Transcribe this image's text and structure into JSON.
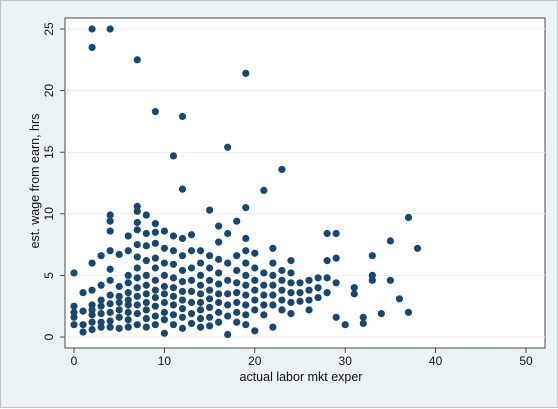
{
  "chart_data": {
    "type": "scatter",
    "title": "",
    "xlabel": "actual labor mkt exper",
    "ylabel": "est. wage from earn, hrs",
    "xlim": [
      0,
      50
    ],
    "ylim": [
      0,
      25
    ],
    "xticks": [
      0,
      10,
      20,
      30,
      40,
      50
    ],
    "yticks": [
      0,
      5,
      10,
      15,
      20,
      25
    ],
    "grid": "horizontal",
    "legend": "none",
    "marker_color": "#1a476f",
    "series": [
      {
        "points": [
          [
            0,
            5.2
          ],
          [
            0,
            2.5
          ],
          [
            0,
            2.0
          ],
          [
            0,
            1.6
          ],
          [
            0,
            1.0
          ],
          [
            1,
            3.6
          ],
          [
            1,
            2.1
          ],
          [
            1,
            1.0
          ],
          [
            1,
            0.4
          ],
          [
            2,
            25.0
          ],
          [
            2,
            23.5
          ],
          [
            2,
            6.0
          ],
          [
            2,
            3.8
          ],
          [
            2,
            2.6
          ],
          [
            2,
            2.2
          ],
          [
            2,
            1.8
          ],
          [
            2,
            1.2
          ],
          [
            2,
            0.6
          ],
          [
            3,
            6.6
          ],
          [
            3,
            4.2
          ],
          [
            3,
            3.0
          ],
          [
            3,
            2.5
          ],
          [
            3,
            1.9
          ],
          [
            3,
            1.2
          ],
          [
            3,
            0.8
          ],
          [
            4,
            25.0
          ],
          [
            4,
            9.9
          ],
          [
            4,
            9.4
          ],
          [
            4,
            8.6
          ],
          [
            4,
            7.0
          ],
          [
            4,
            5.5
          ],
          [
            4,
            4.6
          ],
          [
            4,
            3.4
          ],
          [
            4,
            2.7
          ],
          [
            4,
            2.0
          ],
          [
            4,
            1.3
          ],
          [
            4,
            0.8
          ],
          [
            5,
            6.7
          ],
          [
            5,
            4.1
          ],
          [
            5,
            3.3
          ],
          [
            5,
            2.8
          ],
          [
            5,
            2.2
          ],
          [
            5,
            1.6
          ],
          [
            5,
            0.7
          ],
          [
            6,
            8.2
          ],
          [
            6,
            7.0
          ],
          [
            6,
            5.0
          ],
          [
            6,
            4.4
          ],
          [
            6,
            3.6
          ],
          [
            6,
            3.0
          ],
          [
            6,
            2.6
          ],
          [
            6,
            2.0
          ],
          [
            6,
            1.4
          ],
          [
            6,
            0.8
          ],
          [
            7,
            22.5
          ],
          [
            7,
            10.6
          ],
          [
            7,
            10.2
          ],
          [
            7,
            9.3
          ],
          [
            7,
            8.7
          ],
          [
            7,
            7.5
          ],
          [
            7,
            6.5
          ],
          [
            7,
            5.6
          ],
          [
            7,
            4.8
          ],
          [
            7,
            4.0
          ],
          [
            7,
            3.3
          ],
          [
            7,
            2.6
          ],
          [
            7,
            1.9
          ],
          [
            7,
            1.0
          ],
          [
            8,
            9.9
          ],
          [
            8,
            8.4
          ],
          [
            8,
            7.4
          ],
          [
            8,
            6.2
          ],
          [
            8,
            5.0
          ],
          [
            8,
            4.2
          ],
          [
            8,
            3.5
          ],
          [
            8,
            2.8
          ],
          [
            8,
            2.2
          ],
          [
            8,
            1.5
          ],
          [
            8,
            0.8
          ],
          [
            9,
            18.3
          ],
          [
            9,
            9.2
          ],
          [
            9,
            8.5
          ],
          [
            9,
            7.6
          ],
          [
            9,
            6.4
          ],
          [
            9,
            5.6
          ],
          [
            9,
            4.6
          ],
          [
            9,
            3.8
          ],
          [
            9,
            3.2
          ],
          [
            9,
            2.5
          ],
          [
            9,
            1.7
          ],
          [
            9,
            1.0
          ],
          [
            10,
            8.6
          ],
          [
            10,
            7.2
          ],
          [
            10,
            6.0
          ],
          [
            10,
            5.0
          ],
          [
            10,
            4.1
          ],
          [
            10,
            3.5
          ],
          [
            10,
            2.8
          ],
          [
            10,
            2.0
          ],
          [
            10,
            1.4
          ],
          [
            10,
            0.3
          ],
          [
            11,
            14.7
          ],
          [
            11,
            8.2
          ],
          [
            11,
            7.0
          ],
          [
            11,
            5.9
          ],
          [
            11,
            4.8
          ],
          [
            11,
            4.0
          ],
          [
            11,
            3.3
          ],
          [
            11,
            2.6
          ],
          [
            11,
            1.8
          ],
          [
            11,
            1.0
          ],
          [
            12,
            17.9
          ],
          [
            12,
            12.0
          ],
          [
            12,
            8.0
          ],
          [
            12,
            6.6
          ],
          [
            12,
            5.4
          ],
          [
            12,
            4.5
          ],
          [
            12,
            3.7
          ],
          [
            12,
            3.0
          ],
          [
            12,
            2.3
          ],
          [
            12,
            1.6
          ],
          [
            12,
            0.7
          ],
          [
            13,
            8.3
          ],
          [
            13,
            7.0
          ],
          [
            13,
            5.6
          ],
          [
            13,
            4.6
          ],
          [
            13,
            3.7
          ],
          [
            13,
            2.8
          ],
          [
            13,
            1.9
          ],
          [
            13,
            1.1
          ],
          [
            14,
            7.0
          ],
          [
            14,
            6.0
          ],
          [
            14,
            5.0
          ],
          [
            14,
            4.2
          ],
          [
            14,
            3.5
          ],
          [
            14,
            2.8
          ],
          [
            14,
            2.2
          ],
          [
            14,
            1.5
          ],
          [
            14,
            0.8
          ],
          [
            15,
            10.3
          ],
          [
            15,
            6.6
          ],
          [
            15,
            5.6
          ],
          [
            15,
            4.6
          ],
          [
            15,
            3.8
          ],
          [
            15,
            3.1
          ],
          [
            15,
            2.4
          ],
          [
            15,
            1.6
          ],
          [
            15,
            0.9
          ],
          [
            16,
            9.0
          ],
          [
            16,
            7.7
          ],
          [
            16,
            6.3
          ],
          [
            16,
            5.2
          ],
          [
            16,
            4.3
          ],
          [
            16,
            3.5
          ],
          [
            16,
            2.8
          ],
          [
            16,
            2.0
          ],
          [
            16,
            1.2
          ],
          [
            17,
            15.4
          ],
          [
            17,
            8.4
          ],
          [
            17,
            6.0
          ],
          [
            17,
            4.6
          ],
          [
            17,
            3.5
          ],
          [
            17,
            2.6
          ],
          [
            17,
            1.7
          ],
          [
            17,
            0.2
          ],
          [
            18,
            9.4
          ],
          [
            18,
            6.6
          ],
          [
            18,
            5.4
          ],
          [
            18,
            4.4
          ],
          [
            18,
            3.6
          ],
          [
            18,
            2.8
          ],
          [
            18,
            2.0
          ],
          [
            18,
            1.2
          ],
          [
            19,
            21.4
          ],
          [
            19,
            10.5
          ],
          [
            19,
            8.0
          ],
          [
            19,
            7.0
          ],
          [
            19,
            6.0
          ],
          [
            19,
            5.0
          ],
          [
            19,
            4.2
          ],
          [
            19,
            3.4
          ],
          [
            19,
            2.6
          ],
          [
            19,
            1.8
          ],
          [
            19,
            1.0
          ],
          [
            20,
            6.8
          ],
          [
            20,
            5.6
          ],
          [
            20,
            4.6
          ],
          [
            20,
            3.8
          ],
          [
            20,
            3.0
          ],
          [
            20,
            2.2
          ],
          [
            20,
            0.5
          ],
          [
            21,
            11.9
          ],
          [
            21,
            5.2
          ],
          [
            21,
            4.2
          ],
          [
            21,
            3.4
          ],
          [
            21,
            2.6
          ],
          [
            21,
            1.8
          ],
          [
            22,
            7.2
          ],
          [
            22,
            6.0
          ],
          [
            22,
            5.0
          ],
          [
            22,
            4.2
          ],
          [
            22,
            3.4
          ],
          [
            22,
            2.6
          ],
          [
            22,
            0.8
          ],
          [
            23,
            13.6
          ],
          [
            23,
            5.4
          ],
          [
            23,
            4.6
          ],
          [
            23,
            3.8
          ],
          [
            23,
            3.0
          ],
          [
            23,
            2.2
          ],
          [
            24,
            6.2
          ],
          [
            24,
            5.2
          ],
          [
            24,
            4.4
          ],
          [
            24,
            3.6
          ],
          [
            24,
            2.8
          ],
          [
            24,
            1.9
          ],
          [
            25,
            4.4
          ],
          [
            25,
            3.6
          ],
          [
            25,
            2.9
          ],
          [
            26,
            4.6
          ],
          [
            26,
            3.8
          ],
          [
            26,
            3.0
          ],
          [
            26,
            2.2
          ],
          [
            27,
            4.8
          ],
          [
            27,
            4.0
          ],
          [
            27,
            3.2
          ],
          [
            28,
            8.4
          ],
          [
            28,
            6.2
          ],
          [
            28,
            4.8
          ],
          [
            28,
            3.6
          ],
          [
            29,
            8.4
          ],
          [
            29,
            6.4
          ],
          [
            29,
            4.4
          ],
          [
            29,
            1.6
          ],
          [
            30,
            1.0
          ],
          [
            31,
            4.0
          ],
          [
            31,
            3.5
          ],
          [
            32,
            1.6
          ],
          [
            32,
            1.1
          ],
          [
            33,
            6.6
          ],
          [
            33,
            5.0
          ],
          [
            33,
            4.6
          ],
          [
            34,
            1.9
          ],
          [
            35,
            7.8
          ],
          [
            35,
            4.6
          ],
          [
            36,
            3.1
          ],
          [
            37,
            9.7
          ],
          [
            37,
            2.0
          ],
          [
            38,
            7.2
          ]
        ]
      }
    ]
  }
}
